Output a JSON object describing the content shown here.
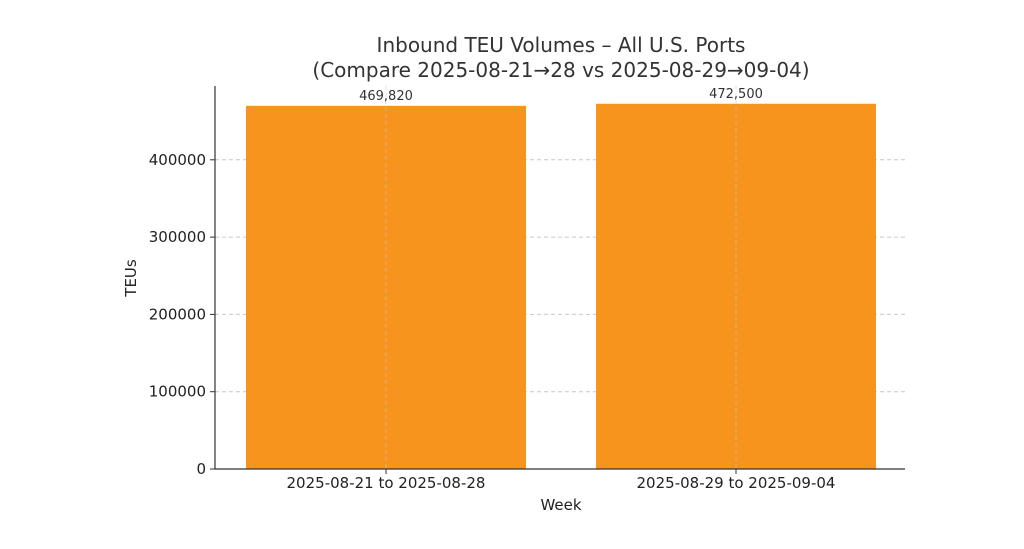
{
  "chart_data": {
    "type": "bar",
    "title": "Inbound TEU Volumes – All U.S. Ports",
    "subtitle": "(Compare 2025-08-21→28 vs 2025-08-29→09-04)",
    "xlabel": "Week",
    "ylabel": "TEUs",
    "categories": [
      "2025-08-21 to 2025-08-28",
      "2025-08-29 to 2025-09-04"
    ],
    "values": [
      469820,
      472500
    ],
    "data_labels": [
      "469,820",
      "472,500"
    ],
    "ylim": [
      0,
      500000
    ],
    "yticks": [
      0,
      100000,
      200000,
      300000,
      400000
    ],
    "ytick_labels": [
      "0",
      "100000",
      "200000",
      "300000",
      "400000"
    ],
    "grid": true,
    "bar_color": "#F7941D"
  }
}
